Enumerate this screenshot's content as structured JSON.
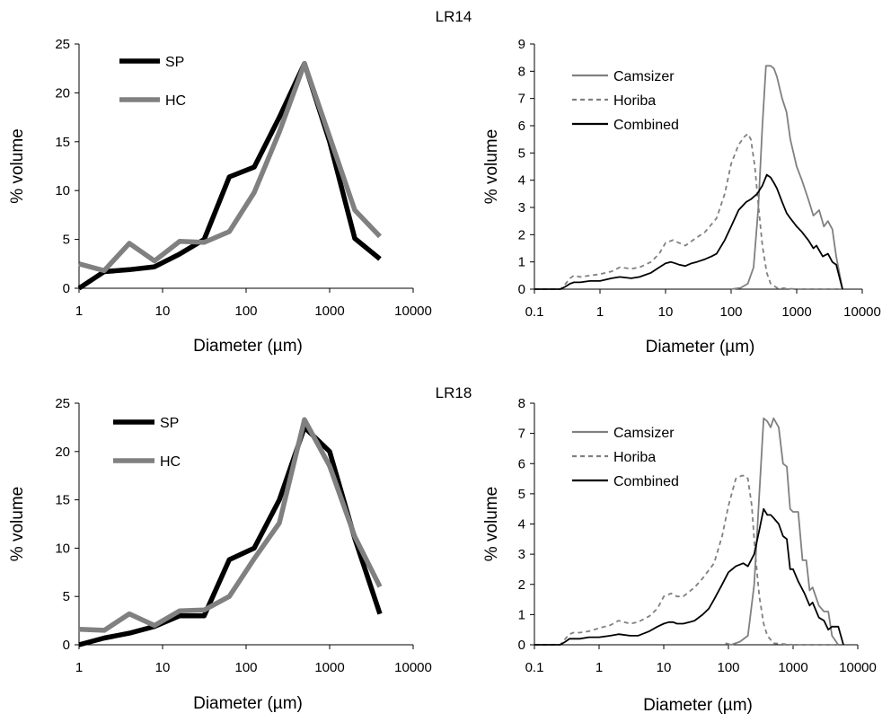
{
  "titles": [
    "LR14",
    "LR18"
  ],
  "chart_data": [
    {
      "type": "line",
      "group": "LR14",
      "title": "",
      "xlabel": "Diameter (µm)",
      "ylabel": "% volume",
      "xscale": "log",
      "xlim": [
        1,
        10000
      ],
      "ylim": [
        0,
        25
      ],
      "xticks": [
        1,
        10,
        100,
        1000,
        10000
      ],
      "xtick_labels": [
        "1",
        "10",
        "100",
        "1000",
        "10000"
      ],
      "yticks": [
        0,
        5,
        10,
        15,
        20,
        25
      ],
      "ytick_labels": [
        "0",
        "5",
        "10",
        "15",
        "20",
        "25"
      ],
      "legend": "top-left",
      "grid": false,
      "series": [
        {
          "name": "SP",
          "color": "#000000",
          "dash": "",
          "x": [
            1,
            2,
            4,
            8,
            16,
            31.5,
            63,
            125,
            250,
            500,
            1000,
            2000,
            4000
          ],
          "y": [
            0,
            1.7,
            1.9,
            2.2,
            3.5,
            5,
            11.4,
            12.4,
            17.5,
            23,
            15,
            5.1,
            3
          ]
        },
        {
          "name": "HC",
          "color": "#808080",
          "dash": "",
          "x": [
            1,
            2,
            4,
            8,
            16,
            31.5,
            63,
            125,
            250,
            500,
            1000,
            2000,
            4000
          ],
          "y": [
            2.5,
            1.8,
            4.6,
            2.8,
            4.8,
            4.7,
            5.8,
            9.8,
            16,
            23,
            15.5,
            8,
            5.3
          ]
        }
      ]
    },
    {
      "type": "line",
      "group": "LR14",
      "title": "",
      "xlabel": "Diameter (µm)",
      "ylabel": "% volume",
      "xscale": "log",
      "xlim": [
        0.1,
        10000
      ],
      "ylim": [
        0,
        9
      ],
      "xticks": [
        0.1,
        1,
        10,
        100,
        1000,
        10000
      ],
      "xtick_labels": [
        "0.1",
        "1",
        "10",
        "100",
        "1000",
        "10000"
      ],
      "yticks": [
        0,
        1,
        2,
        3,
        4,
        5,
        6,
        7,
        8,
        9
      ],
      "ytick_labels": [
        "0",
        "1",
        "2",
        "3",
        "4",
        "5",
        "6",
        "7",
        "8",
        "9"
      ],
      "legend": "top-left",
      "grid": false,
      "series": [
        {
          "name": "Camsizer",
          "color": "#808080",
          "dash": "",
          "x": [
            100,
            140,
            180,
            220,
            260,
            300,
            340,
            400,
            450,
            500,
            600,
            700,
            800,
            1000,
            1200,
            1500,
            1800,
            2200,
            2600,
            3000,
            3500,
            4000,
            5000
          ],
          "y": [
            0,
            0.05,
            0.2,
            0.8,
            3,
            6,
            8.2,
            8.2,
            8.1,
            7.8,
            7,
            6.5,
            5.5,
            4.5,
            4,
            3.3,
            2.7,
            2.9,
            2.3,
            2.5,
            2.2,
            1.2,
            0
          ]
        },
        {
          "name": "Horiba",
          "color": "#808080",
          "dash": "5,4",
          "x": [
            0.1,
            0.25,
            0.3,
            0.35,
            0.4,
            0.5,
            0.7,
            1,
            1.5,
            2,
            3,
            4,
            6,
            8,
            10,
            13,
            16,
            20,
            30,
            40,
            60,
            80,
            100,
            130,
            160,
            180,
            200,
            230,
            260,
            300,
            350,
            400,
            500,
            1000,
            5000
          ],
          "y": [
            0,
            0,
            0.2,
            0.4,
            0.5,
            0.45,
            0.5,
            0.55,
            0.65,
            0.8,
            0.75,
            0.8,
            1,
            1.3,
            1.7,
            1.8,
            1.7,
            1.6,
            1.9,
            2.1,
            2.6,
            3.5,
            4.6,
            5.3,
            5.6,
            5.7,
            5.5,
            4.5,
            3.1,
            1.6,
            0.6,
            0.2,
            0.05,
            0,
            0
          ]
        },
        {
          "name": "Combined",
          "color": "#000000",
          "dash": "",
          "x": [
            0.1,
            0.25,
            0.3,
            0.35,
            0.4,
            0.5,
            0.7,
            1,
            1.5,
            2,
            3,
            4,
            6,
            8,
            10,
            12,
            14,
            16,
            20,
            25,
            30,
            40,
            50,
            60,
            80,
            100,
            130,
            170,
            200,
            250,
            300,
            350,
            400,
            450,
            500,
            600,
            700,
            800,
            1000,
            1200,
            1500,
            1800,
            2000,
            2500,
            3000,
            3500,
            4000,
            5000
          ],
          "y": [
            0,
            0,
            0.1,
            0.2,
            0.25,
            0.25,
            0.3,
            0.3,
            0.4,
            0.45,
            0.4,
            0.45,
            0.6,
            0.8,
            0.95,
            1,
            0.95,
            0.9,
            0.85,
            0.95,
            1,
            1.1,
            1.2,
            1.3,
            1.8,
            2.3,
            2.9,
            3.2,
            3.3,
            3.5,
            3.8,
            4.2,
            4.1,
            3.9,
            3.7,
            3.2,
            2.8,
            2.6,
            2.3,
            2.1,
            1.8,
            1.5,
            1.6,
            1.2,
            1.3,
            1.0,
            0.9,
            0
          ]
        }
      ]
    },
    {
      "type": "line",
      "group": "LR18",
      "title": "",
      "xlabel": "Diameter (µm)",
      "ylabel": "% volume",
      "xscale": "log",
      "xlim": [
        1,
        10000
      ],
      "ylim": [
        0,
        25
      ],
      "xticks": [
        1,
        10,
        100,
        1000,
        10000
      ],
      "xtick_labels": [
        "1",
        "10",
        "100",
        "1000",
        "10000"
      ],
      "yticks": [
        0,
        5,
        10,
        15,
        20,
        25
      ],
      "ytick_labels": [
        "0",
        "5",
        "10",
        "15",
        "20",
        "25"
      ],
      "legend": "top-left",
      "grid": false,
      "series": [
        {
          "name": "SP",
          "color": "#000000",
          "dash": "",
          "x": [
            1,
            2,
            4,
            8,
            16,
            31.5,
            63,
            125,
            250,
            500,
            1000,
            2000,
            4000
          ],
          "y": [
            0,
            0.7,
            1.2,
            1.9,
            3,
            3,
            8.8,
            10,
            15,
            22.5,
            20,
            11,
            3.2
          ]
        },
        {
          "name": "HC",
          "color": "#808080",
          "dash": "",
          "x": [
            1,
            2,
            4,
            8,
            16,
            31.5,
            63,
            125,
            250,
            500,
            1000,
            2000,
            4000
          ],
          "y": [
            1.6,
            1.5,
            3.2,
            2,
            3.5,
            3.6,
            5,
            8.9,
            12.6,
            23.3,
            18.5,
            11.2,
            6
          ]
        }
      ]
    },
    {
      "type": "line",
      "group": "LR18",
      "title": "",
      "xlabel": "Diameter (µm)",
      "ylabel": "% volume",
      "xscale": "log",
      "xlim": [
        0.1,
        10000
      ],
      "ylim": [
        0,
        8
      ],
      "xticks": [
        0.1,
        1,
        10,
        100,
        1000,
        10000
      ],
      "xtick_labels": [
        "0.1",
        "1",
        "10",
        "100",
        "1000",
        "10000"
      ],
      "yticks": [
        0,
        1,
        2,
        3,
        4,
        5,
        6,
        7,
        8
      ],
      "ytick_labels": [
        "0",
        "1",
        "2",
        "3",
        "4",
        "5",
        "6",
        "7",
        "8"
      ],
      "legend": "top-left",
      "grid": false,
      "series": [
        {
          "name": "Camsizer",
          "color": "#808080",
          "dash": "",
          "x": [
            90,
            110,
            150,
            200,
            250,
            300,
            350,
            400,
            450,
            500,
            600,
            700,
            800,
            900,
            1000,
            1200,
            1400,
            1600,
            1800,
            2000,
            2500,
            3000,
            3500,
            4000,
            5000
          ],
          "y": [
            0.05,
            0,
            0.1,
            0.3,
            2,
            5,
            7.5,
            7.4,
            7.2,
            7.5,
            7.2,
            6,
            5.9,
            4.5,
            4.4,
            4.4,
            2.8,
            2.8,
            1.8,
            1.9,
            1.3,
            1.1,
            1.1,
            0.3,
            0
          ]
        },
        {
          "name": "Horiba",
          "color": "#808080",
          "dash": "5,4",
          "x": [
            0.1,
            0.25,
            0.3,
            0.35,
            0.4,
            0.5,
            0.7,
            1,
            1.5,
            2,
            3,
            4,
            6,
            8,
            10,
            13,
            16,
            20,
            30,
            40,
            60,
            80,
            100,
            130,
            160,
            180,
            200,
            230,
            260,
            300,
            350,
            400,
            500,
            1000,
            5000
          ],
          "y": [
            0,
            0,
            0.2,
            0.35,
            0.4,
            0.4,
            0.45,
            0.55,
            0.65,
            0.8,
            0.7,
            0.75,
            0.95,
            1.2,
            1.6,
            1.7,
            1.6,
            1.6,
            1.9,
            2.2,
            2.7,
            3.6,
            4.6,
            5.5,
            5.6,
            5.6,
            5.5,
            4.6,
            3,
            1.6,
            0.7,
            0.3,
            0.05,
            0,
            0
          ]
        },
        {
          "name": "Combined",
          "color": "#000000",
          "dash": "",
          "x": [
            0.1,
            0.25,
            0.3,
            0.35,
            0.4,
            0.5,
            0.7,
            1,
            1.5,
            2,
            3,
            4,
            6,
            8,
            10,
            12,
            14,
            16,
            20,
            25,
            30,
            40,
            50,
            60,
            80,
            100,
            130,
            170,
            200,
            250,
            300,
            350,
            400,
            450,
            500,
            600,
            700,
            800,
            900,
            1000,
            1200,
            1500,
            1800,
            2000,
            2500,
            3000,
            3500,
            4000,
            5000,
            6000
          ],
          "y": [
            0,
            0,
            0.1,
            0.2,
            0.2,
            0.2,
            0.25,
            0.25,
            0.3,
            0.35,
            0.3,
            0.3,
            0.45,
            0.6,
            0.7,
            0.75,
            0.75,
            0.7,
            0.7,
            0.75,
            0.8,
            1,
            1.2,
            1.5,
            2,
            2.4,
            2.6,
            2.7,
            2.6,
            3,
            3.8,
            4.5,
            4.3,
            4.3,
            4.2,
            4,
            3.6,
            3.5,
            2.5,
            2.5,
            2.1,
            1.7,
            1.3,
            1.4,
            0.9,
            0.8,
            0.5,
            0.6,
            0.6,
            0
          ]
        }
      ]
    }
  ]
}
